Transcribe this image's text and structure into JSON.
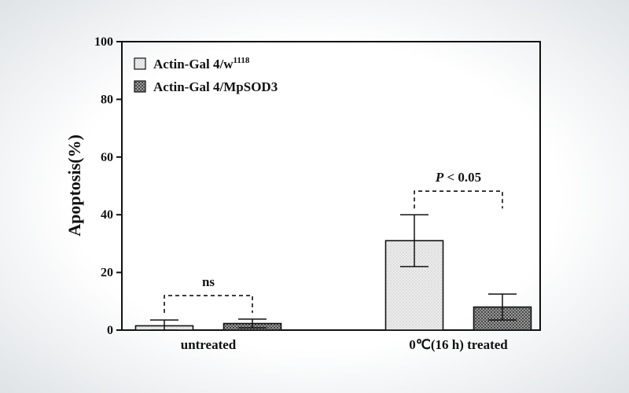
{
  "chart_data": {
    "type": "bar",
    "categories": [
      "untreated",
      "0℃(16 h) treated"
    ],
    "series": [
      {
        "name": "Actin-Gal 4/w",
        "name_superscript": "1118",
        "values": [
          1.5,
          31
        ],
        "errors": [
          2,
          9
        ],
        "pattern": "dotted-light",
        "fill": "#e2e2e2"
      },
      {
        "name": "Actin-Gal 4/MpSOD3",
        "values": [
          2.3,
          8
        ],
        "errors": [
          1.5,
          4.5
        ],
        "pattern": "crosshatch-dark",
        "fill": "#8a8a8a"
      }
    ],
    "ylabel": "Apoptosis(%)",
    "xlabel": "",
    "ylim": [
      0,
      100
    ],
    "yticks": [
      0,
      20,
      40,
      60,
      80,
      100
    ],
    "annotations": [
      {
        "category_index": 0,
        "text": "ns",
        "italic_prefix": ""
      },
      {
        "category_index": 1,
        "text": " < 0.05",
        "italic_prefix": "P"
      }
    ],
    "legend_position": "top-left",
    "grid": false
  }
}
